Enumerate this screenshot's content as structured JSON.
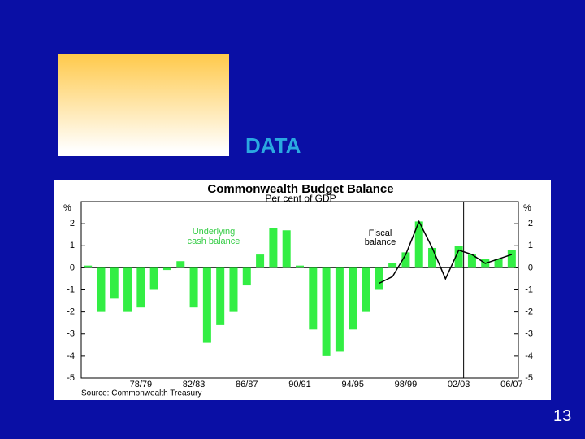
{
  "slide": {
    "heading": "DATA",
    "page_number": "13"
  },
  "chart_data": {
    "type": "bar",
    "title": "Commonwealth Budget Balance",
    "subtitle": "Per cent of GDP",
    "y_label": "%",
    "source": "Source: Commonwealth Treasury",
    "annotations": [
      "Underlying",
      "cash balance",
      "Fiscal",
      "balance"
    ],
    "categories": [
      null,
      null,
      null,
      null,
      "78/79",
      null,
      null,
      null,
      "82/83",
      null,
      null,
      null,
      "86/87",
      null,
      null,
      null,
      "90/91",
      null,
      null,
      null,
      "94/95",
      null,
      null,
      null,
      "98/99",
      null,
      null,
      null,
      "02/03",
      null,
      null,
      null,
      "06/07"
    ],
    "series": [
      {
        "name": "Underlying cash balance",
        "type": "bar",
        "color": "#33ee44",
        "values": [
          0.1,
          -2.0,
          -1.4,
          -2.0,
          -1.8,
          -1.0,
          -0.1,
          0.3,
          -1.8,
          -3.4,
          -2.6,
          -2.0,
          -0.8,
          0.6,
          1.8,
          1.7,
          0.1,
          -2.8,
          -4.0,
          -3.8,
          -2.8,
          -2.0,
          -1.0,
          0.2,
          0.7,
          2.1,
          0.9,
          0.0,
          1.0,
          0.6,
          0.4,
          0.4,
          0.8
        ]
      },
      {
        "name": "Fiscal balance",
        "type": "line",
        "color": "#000000",
        "values": [
          null,
          null,
          null,
          null,
          null,
          null,
          null,
          null,
          null,
          null,
          null,
          null,
          null,
          null,
          null,
          null,
          null,
          null,
          null,
          null,
          null,
          null,
          -0.7,
          -0.4,
          0.6,
          2.1,
          0.9,
          -0.5,
          0.8,
          0.6,
          0.2,
          0.4,
          0.6
        ]
      }
    ],
    "ylim": [
      -5,
      3
    ],
    "yticks": [
      -5,
      -4,
      -3,
      -2,
      -1,
      0,
      1,
      2
    ]
  }
}
